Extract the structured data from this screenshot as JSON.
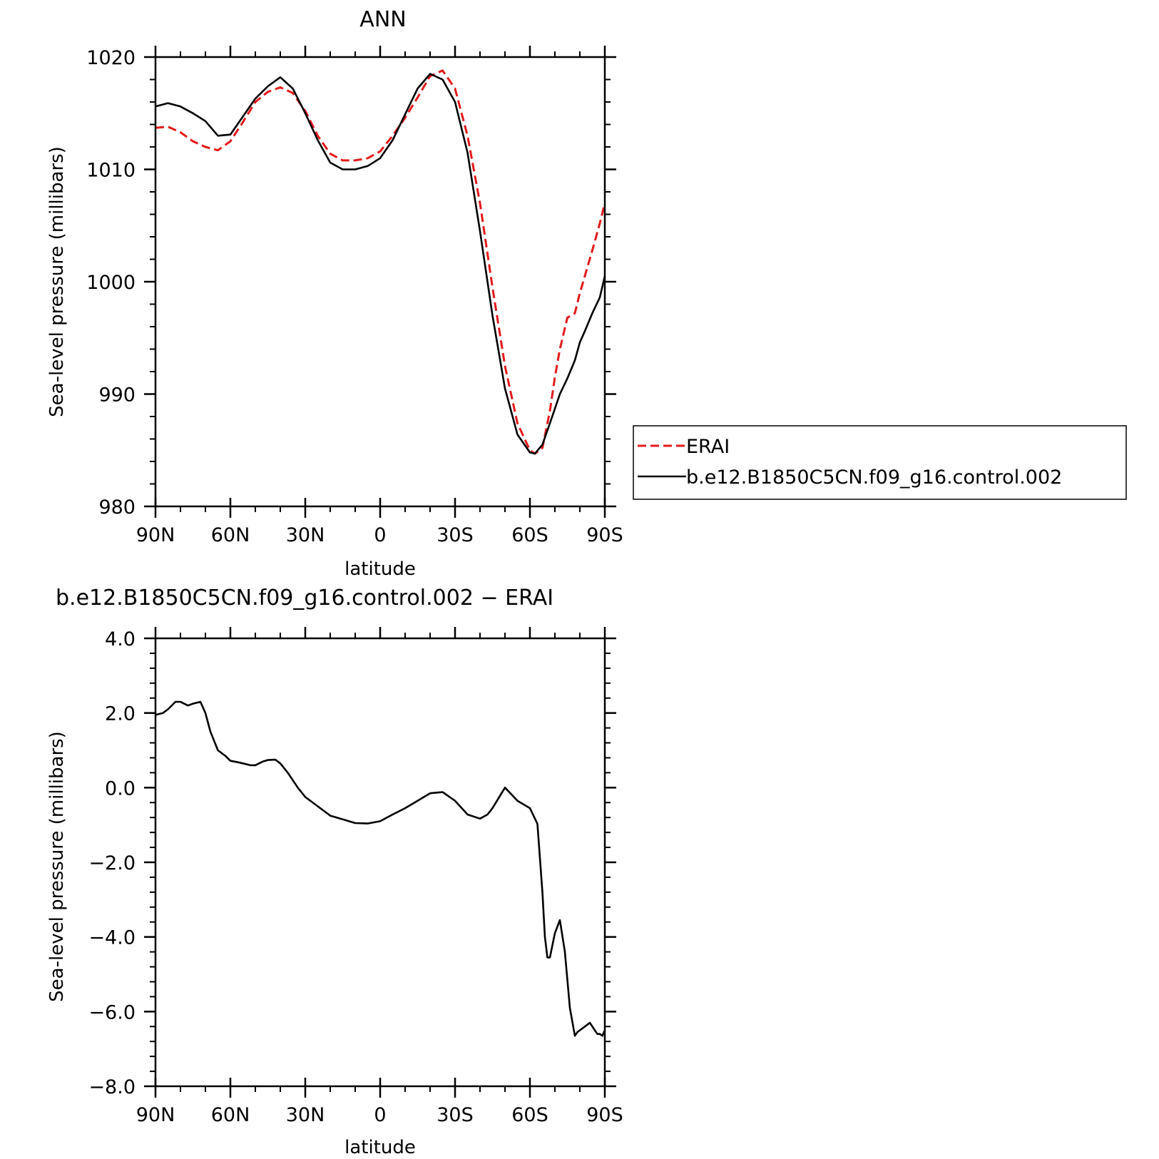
{
  "colors": {
    "erai": "#e41a1c",
    "model": "#000000",
    "background": "#ffffff"
  },
  "chart_data": [
    {
      "type": "line",
      "title": "ANN",
      "xlabel": "latitude",
      "ylabel": "Sea-level pressure (millibars)",
      "xlim": [
        90,
        -90
      ],
      "ylim": [
        980,
        1020
      ],
      "x_ticks": [
        90,
        60,
        30,
        0,
        -30,
        -60,
        -90
      ],
      "x_tick_labels": [
        "90N",
        "60N",
        "30N",
        "0",
        "30S",
        "60S",
        "90S"
      ],
      "y_ticks": [
        980,
        990,
        1000,
        1010,
        1020
      ],
      "y_tick_labels": [
        "980",
        "990",
        "1000",
        "1010",
        "1020"
      ],
      "legend": {
        "placement": "right",
        "entries": [
          "ERAI",
          "b.e12.B1850C5CN.f09_g16.control.002"
        ]
      },
      "series": [
        {
          "name": "ERAI",
          "style": "dashed",
          "color": "#e41a1c",
          "x": [
            90,
            85,
            80,
            75,
            70,
            65,
            60,
            55,
            50,
            45,
            40,
            35,
            30,
            25,
            20,
            15,
            10,
            5,
            0,
            -5,
            -10,
            -15,
            -20,
            -25,
            -30,
            -35,
            -40,
            -45,
            -50,
            -55,
            -60,
            -62,
            -65,
            -68,
            -70,
            -72,
            -75,
            -78,
            -80,
            -82,
            -85,
            -88,
            -90
          ],
          "values": [
            1013.7,
            1013.8,
            1013.3,
            1012.5,
            1012.0,
            1011.7,
            1012.5,
            1014.2,
            1016.0,
            1016.9,
            1017.3,
            1016.8,
            1015.2,
            1013.0,
            1011.4,
            1010.8,
            1010.8,
            1011.0,
            1011.6,
            1013.0,
            1014.6,
            1016.4,
            1018.3,
            1018.8,
            1017.2,
            1013.0,
            1007.0,
            999.5,
            992.5,
            987.4,
            985.0,
            984.7,
            985.2,
            988.5,
            991.5,
            994.0,
            996.8,
            997.2,
            999.0,
            1000.5,
            1002.8,
            1005.2,
            1007.0
          ]
        },
        {
          "name": "b.e12.B1850C5CN.f09_g16.control.002",
          "style": "solid",
          "color": "#000000",
          "x": [
            90,
            85,
            80,
            75,
            70,
            65,
            60,
            55,
            50,
            45,
            40,
            35,
            30,
            25,
            20,
            15,
            10,
            5,
            0,
            -5,
            -10,
            -15,
            -20,
            -25,
            -30,
            -35,
            -40,
            -45,
            -50,
            -55,
            -60,
            -62,
            -65,
            -68,
            -70,
            -72,
            -75,
            -78,
            -80,
            -82,
            -85,
            -88,
            -90
          ],
          "values": [
            1015.6,
            1015.9,
            1015.6,
            1015.0,
            1014.3,
            1013.0,
            1013.1,
            1014.7,
            1016.3,
            1017.4,
            1018.2,
            1017.2,
            1015.0,
            1012.6,
            1010.6,
            1010.0,
            1010.0,
            1010.3,
            1011.0,
            1012.6,
            1014.9,
            1017.2,
            1018.5,
            1018.0,
            1016.0,
            1011.5,
            1004.5,
            997.0,
            990.5,
            986.4,
            984.8,
            984.7,
            985.5,
            987.4,
            988.7,
            990.0,
            991.4,
            993.0,
            994.6,
            995.6,
            997.2,
            998.6,
            1000.5
          ]
        }
      ]
    },
    {
      "type": "line",
      "title": "b.e12.B1850C5CN.f09_g16.control.002 − ERAI",
      "xlabel": "latitude",
      "ylabel": "Sea-level pressure (millibars)",
      "xlim": [
        90,
        -90
      ],
      "ylim": [
        -8,
        4
      ],
      "x_ticks": [
        90,
        60,
        30,
        0,
        -30,
        -60,
        -90
      ],
      "x_tick_labels": [
        "90N",
        "60N",
        "30N",
        "0",
        "30S",
        "60S",
        "90S"
      ],
      "y_ticks": [
        4,
        2,
        0,
        -2,
        -4,
        -6,
        -8
      ],
      "y_tick_labels": [
        "4.0",
        "2.0",
        "0.0",
        "−2.0",
        "−4.0",
        "−6.0",
        "−8.0"
      ],
      "series": [
        {
          "name": "b.e12.B1850C5CN.f09_g16.control.002 − ERAI",
          "style": "solid",
          "color": "#000000",
          "x": [
            90,
            87,
            85,
            82,
            80,
            77,
            75,
            72,
            70,
            68,
            65,
            62,
            60,
            57,
            55,
            52,
            50,
            47,
            45,
            42,
            40,
            37,
            35,
            33,
            30,
            25,
            20,
            15,
            10,
            5,
            0,
            -5,
            -10,
            -15,
            -20,
            -25,
            -30,
            -35,
            -40,
            -43,
            -45,
            -50,
            -55,
            -60,
            -63,
            -65,
            -66,
            -67,
            -68,
            -70,
            -72,
            -74,
            -76,
            -78,
            -79,
            -80,
            -82,
            -84,
            -86,
            -87,
            -88,
            -89,
            -90
          ],
          "values": [
            1.95,
            2.0,
            2.1,
            2.3,
            2.3,
            2.2,
            2.25,
            2.3,
            2.0,
            1.5,
            1.0,
            0.85,
            0.72,
            0.68,
            0.65,
            0.6,
            0.6,
            0.7,
            0.74,
            0.75,
            0.65,
            0.4,
            0.2,
            0.0,
            -0.25,
            -0.5,
            -0.75,
            -0.85,
            -0.95,
            -0.96,
            -0.9,
            -0.72,
            -0.55,
            -0.35,
            -0.15,
            -0.12,
            -0.35,
            -0.72,
            -0.83,
            -0.72,
            -0.55,
            -0.0,
            -0.35,
            -0.55,
            -0.97,
            -2.8,
            -4.0,
            -4.55,
            -4.55,
            -3.9,
            -3.55,
            -4.4,
            -5.9,
            -6.65,
            -6.55,
            -6.5,
            -6.4,
            -6.3,
            -6.5,
            -6.6,
            -6.6,
            -6.65,
            -6.5
          ]
        }
      ]
    }
  ]
}
